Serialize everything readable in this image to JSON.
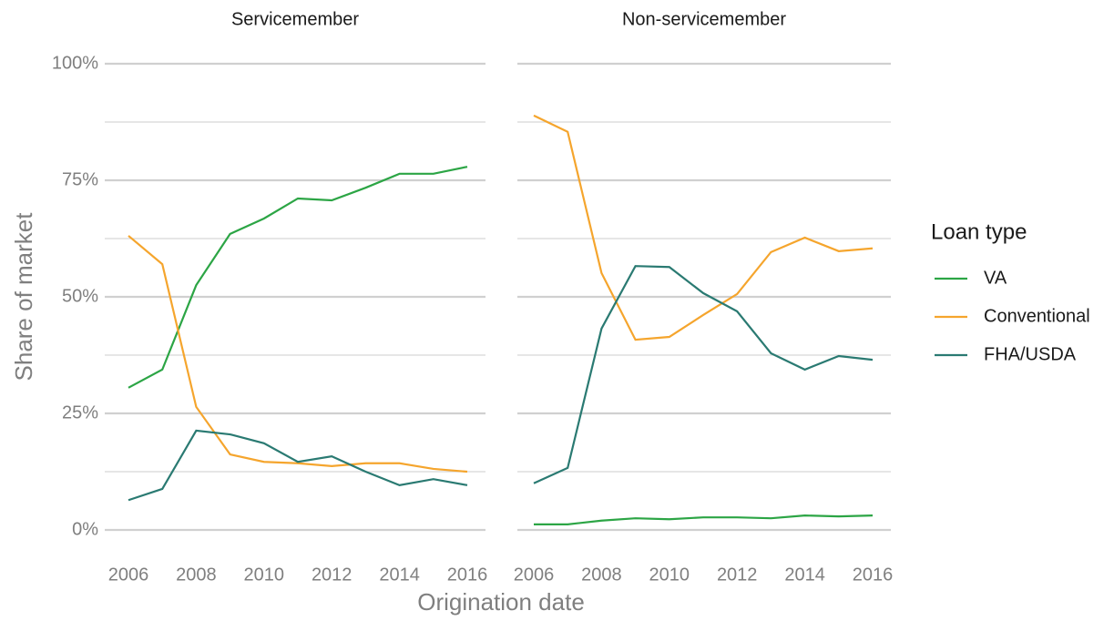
{
  "chart_data": {
    "type": "line",
    "xlabel": "Origination date",
    "ylabel": "Share of market",
    "legend_title": "Loan type",
    "legend": "right",
    "grid": true,
    "x": [
      2006,
      2007,
      2008,
      2009,
      2010,
      2011,
      2012,
      2013,
      2014,
      2015,
      2016
    ],
    "xlim": [
      2006,
      2016
    ],
    "xticks": [
      2006,
      2008,
      2010,
      2012,
      2014,
      2016
    ],
    "ylim": [
      0,
      100
    ],
    "yticks": [
      {
        "value": 0,
        "label": "0%"
      },
      {
        "value": 25,
        "label": "25%"
      },
      {
        "value": 50,
        "label": "50%"
      },
      {
        "value": 75,
        "label": "75%"
      },
      {
        "value": 100,
        "label": "100%"
      }
    ],
    "minor_yticks": [
      12.5,
      37.5,
      62.5,
      87.5
    ],
    "facets": [
      {
        "title": "Servicemember",
        "series": [
          {
            "name": "VA",
            "color": "#2ca545",
            "values": [
              30.5,
              34.4,
              52.5,
              63.5,
              66.8,
              71.1,
              70.7,
              73.4,
              76.4,
              76.4,
              77.9
            ]
          },
          {
            "name": "Conventional",
            "color": "#f5a52d",
            "values": [
              63.1,
              57.0,
              26.4,
              16.2,
              14.6,
              14.3,
              13.7,
              14.3,
              14.3,
              13.1,
              12.5
            ]
          },
          {
            "name": "FHA/USDA",
            "color": "#2a7a72",
            "values": [
              6.4,
              8.8,
              21.3,
              20.5,
              18.6,
              14.6,
              15.8,
              12.5,
              9.6,
              10.9,
              9.6
            ]
          }
        ]
      },
      {
        "title": "Non-servicemember",
        "series": [
          {
            "values": [
              1.2,
              1.2,
              2.0,
              2.5,
              2.3,
              2.7,
              2.7,
              2.5,
              3.1,
              2.9,
              3.1
            ]
          },
          {
            "values": [
              88.9,
              85.4,
              55.1,
              40.8,
              41.4,
              46.1,
              50.6,
              59.6,
              62.7,
              59.8,
              60.4
            ]
          },
          {
            "values": [
              10.0,
              13.3,
              43.2,
              56.6,
              56.4,
              50.8,
              46.9,
              37.9,
              34.4,
              37.3,
              36.5
            ]
          }
        ]
      }
    ]
  }
}
